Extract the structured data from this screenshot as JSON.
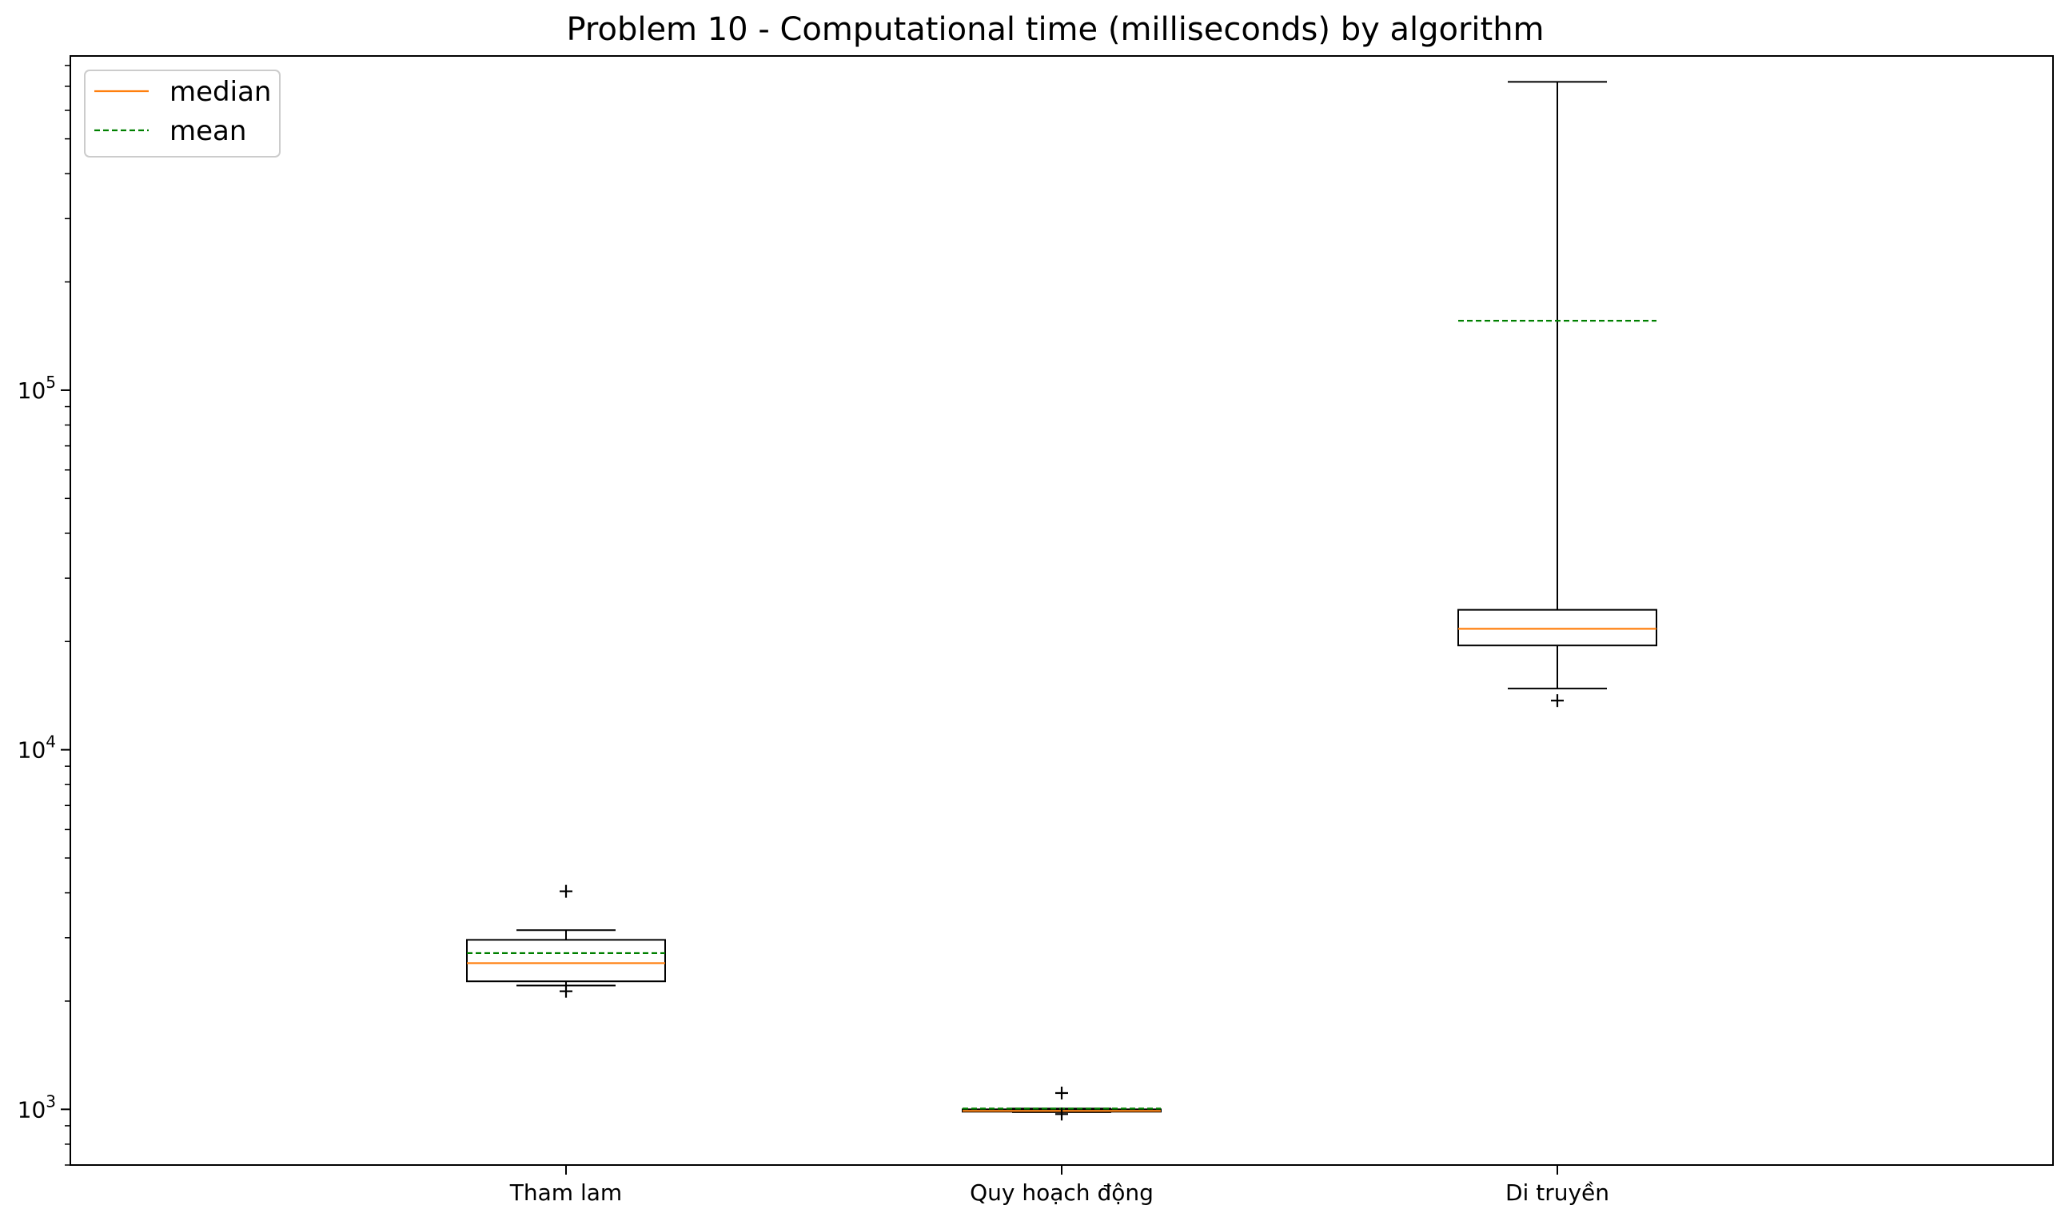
{
  "chart_data": {
    "type": "box",
    "title": "Problem 10 - Computational time (milliseconds) by algorithm",
    "xlabel": "",
    "ylabel": "",
    "y_scale": "log",
    "ylim": [
      700,
      850000
    ],
    "y_ticks": [
      {
        "value": 1000,
        "base": "10",
        "exp": "3"
      },
      {
        "value": 10000,
        "base": "10",
        "exp": "4"
      },
      {
        "value": 100000,
        "base": "10",
        "exp": "5"
      }
    ],
    "grid": false,
    "legend": {
      "position": "top-left",
      "entries": [
        {
          "label": "median",
          "color": "#ff7f0e",
          "style": "solid"
        },
        {
          "label": "mean",
          "color": "#008000",
          "style": "dashed"
        }
      ]
    },
    "categories": [
      "Tham lam",
      "Quy hoạch động",
      "Di truyền"
    ],
    "boxes": [
      {
        "name": "Tham lam",
        "whisker_low": 2210,
        "q1": 2270,
        "median": 2550,
        "q3": 2960,
        "whisker_high": 3150,
        "mean": 2720,
        "outliers": [
          2130,
          4040
        ]
      },
      {
        "name": "Quy hoạch động",
        "whisker_low": 982,
        "q1": 985,
        "median": 990,
        "q3": 1000,
        "whisker_high": 1005,
        "mean": 1005,
        "outliers": [
          970,
          1110
        ]
      },
      {
        "name": "Di truyền",
        "whisker_low": 14800,
        "q1": 19500,
        "median": 21700,
        "q3": 24500,
        "whisker_high": 720000,
        "mean": 156000,
        "outliers": [
          13700
        ]
      }
    ],
    "colors": {
      "median": "#ff7f0e",
      "mean": "#008000",
      "box": "#000000"
    }
  }
}
